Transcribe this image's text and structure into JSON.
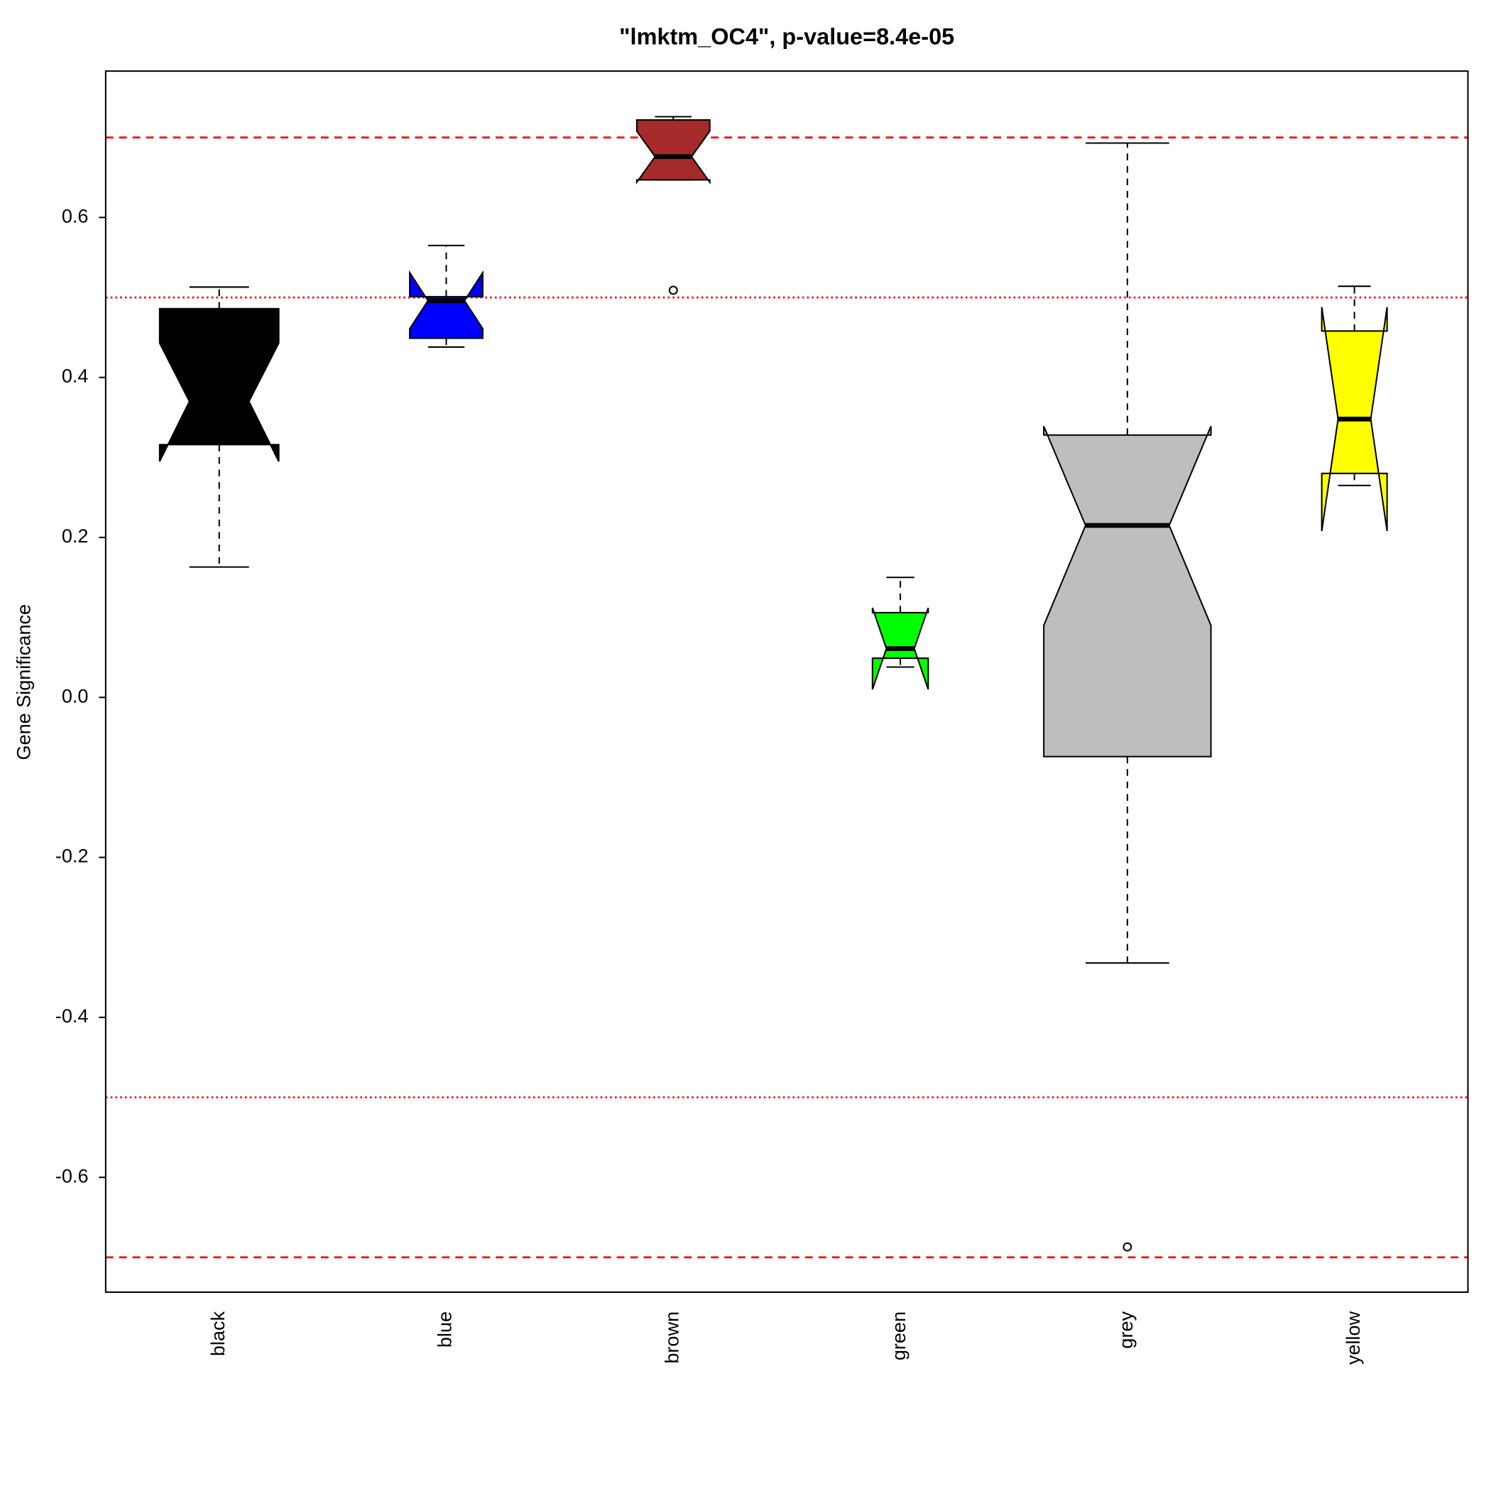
{
  "chart_data": {
    "type": "boxplot",
    "title": "\"lmktm_OC4\", p-value=8.4e-05",
    "ylabel": "Gene Significance",
    "categories": [
      "black",
      "blue",
      "brown",
      "green",
      "grey",
      "yellow"
    ],
    "boxes": [
      {
        "color": "#000000",
        "whisker_low": 0.163,
        "q1": 0.316,
        "median": 0.37,
        "q3": 0.486,
        "whisker_high": 0.513,
        "notch_low": 0.295,
        "notch_high": 0.443,
        "outliers": []
      },
      {
        "color": "#0000ff",
        "whisker_low": 0.438,
        "q1": 0.449,
        "median": 0.496,
        "q3": 0.501,
        "whisker_high": 0.565,
        "notch_low": 0.461,
        "notch_high": 0.531,
        "outliers": []
      },
      {
        "color": "#a52a2a",
        "whisker_low": 0.647,
        "q1": 0.647,
        "median": 0.676,
        "q3": 0.722,
        "whisker_high": 0.726,
        "notch_low": 0.644,
        "notch_high": 0.708,
        "outliers": [
          0.509
        ]
      },
      {
        "color": "#00ff00",
        "whisker_low": 0.038,
        "q1": 0.049,
        "median": 0.061,
        "q3": 0.106,
        "whisker_high": 0.15,
        "notch_low": 0.01,
        "notch_high": 0.112,
        "outliers": []
      },
      {
        "color": "#bebebe",
        "whisker_low": -0.332,
        "q1": -0.074,
        "median": 0.215,
        "q3": 0.328,
        "whisker_high": 0.693,
        "notch_low": 0.09,
        "notch_high": 0.339,
        "outliers": [
          -0.687
        ]
      },
      {
        "color": "#ffff00",
        "whisker_low": 0.265,
        "q1": 0.28,
        "median": 0.348,
        "q3": 0.458,
        "whisker_high": 0.514,
        "notch_low": 0.208,
        "notch_high": 0.488,
        "outliers": []
      }
    ],
    "hlines": [
      {
        "value": 0.7,
        "style": "dashed",
        "color": "#ff0000"
      },
      {
        "value": 0.5,
        "style": "dotted",
        "color": "#ff0000"
      },
      {
        "value": -0.5,
        "style": "dotted",
        "color": "#ff0000"
      },
      {
        "value": -0.7,
        "style": "dashed",
        "color": "#ff0000"
      }
    ],
    "ylim": [
      -0.7435,
      0.783
    ],
    "yticks": [
      -0.6,
      -0.4,
      -0.2,
      {
        "value": 0,
        "label": "0.0"
      },
      0.2,
      0.4,
      0.6
    ]
  }
}
